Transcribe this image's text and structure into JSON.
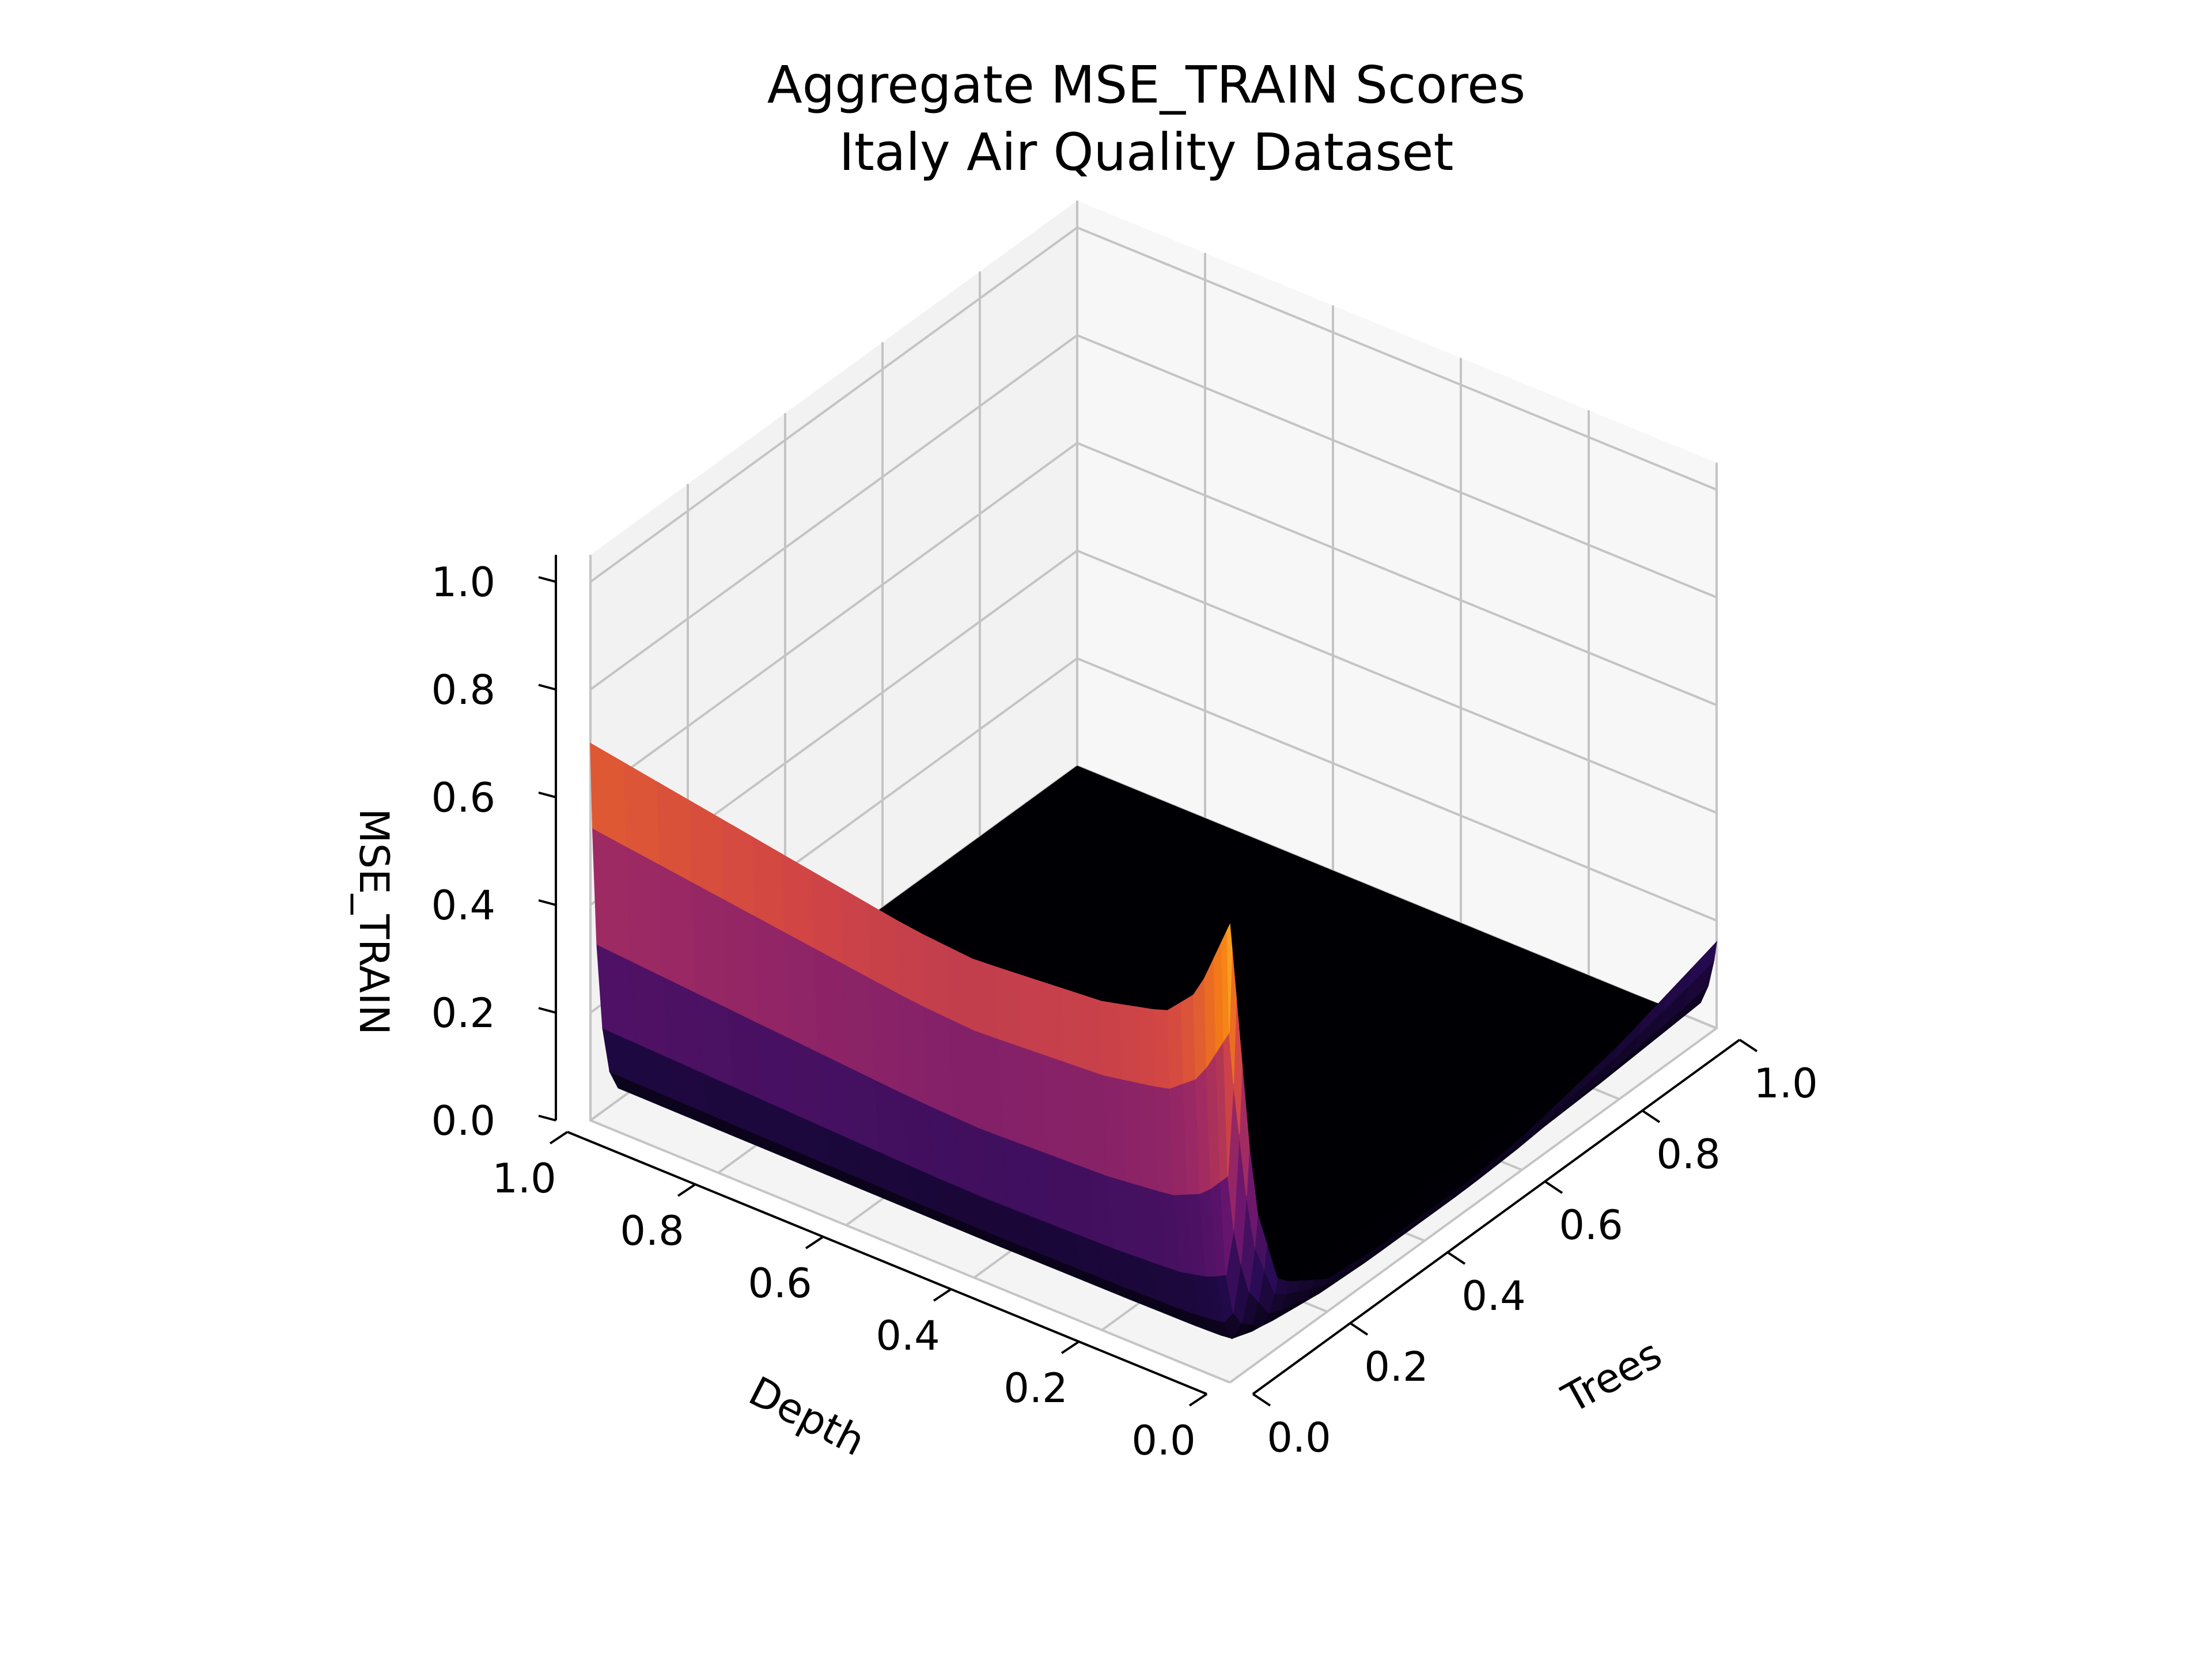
{
  "chart_data": {
    "type": "surface3d",
    "title": "Aggregate MSE_TRAIN Scores",
    "subtitle": "Italy Air Quality Dataset",
    "xlabel": "Depth",
    "ylabel": "Trees",
    "zlabel": "MSE_TRAIN",
    "xlim": [
      0,
      1
    ],
    "ylim": [
      0,
      1
    ],
    "zlim": [
      0,
      1
    ],
    "x_ticks": [
      "0.0",
      "0.2",
      "0.4",
      "0.6",
      "0.8",
      "1.0"
    ],
    "y_ticks": [
      "0.0",
      "0.2",
      "0.4",
      "0.6",
      "0.8",
      "1.0"
    ],
    "z_ticks": [
      "0.0",
      "0.2",
      "0.4",
      "0.6",
      "0.8",
      "1.0"
    ],
    "colormap": "inferno",
    "grid": true,
    "surface_profile": {
      "trees_zero_edge": {
        "depth": [
          0.0,
          0.05,
          0.1,
          0.2,
          0.3,
          0.4,
          0.5,
          0.6,
          0.7,
          0.8,
          0.9,
          1.0
        ],
        "mse_train": [
          0.85,
          0.7,
          0.64,
          0.61,
          0.6,
          0.59,
          0.6,
          0.62,
          0.64,
          0.66,
          0.68,
          0.7
        ]
      },
      "depth_zero_edge": {
        "trees": [
          0.0,
          0.05,
          0.1,
          0.2,
          0.3,
          0.4,
          0.5,
          0.6,
          0.7,
          0.8,
          0.9,
          1.0
        ],
        "mse_train": [
          0.85,
          0.3,
          0.12,
          0.06,
          0.05,
          0.05,
          0.05,
          0.06,
          0.08,
          0.1,
          0.13,
          0.16
        ]
      },
      "interior_value": 0.0
    }
  }
}
